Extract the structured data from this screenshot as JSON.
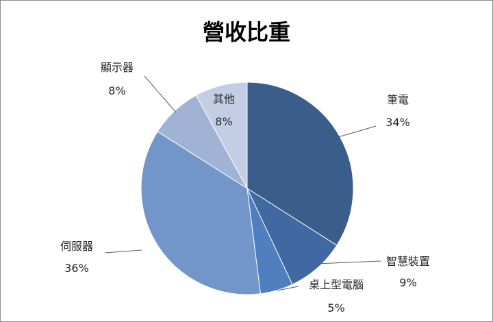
{
  "chart_data": {
    "type": "pie",
    "title": "營收比重",
    "start_angle_deg": 0,
    "direction": "clockwise",
    "slices": [
      {
        "label": "筆電",
        "percent_label": "34%",
        "value": 34,
        "color": "#3a5d8c"
      },
      {
        "label": "智慧裝置",
        "percent_label": "9%",
        "value": 9,
        "color": "#4168a0"
      },
      {
        "label": "桌上型電腦",
        "percent_label": "5%",
        "value": 5,
        "color": "#4f7fbf"
      },
      {
        "label": "伺服器",
        "percent_label": "36%",
        "value": 36,
        "color": "#7296c9"
      },
      {
        "label": "顯示器",
        "percent_label": "8%",
        "value": 8,
        "color": "#a0b3d5"
      },
      {
        "label": "其他",
        "percent_label": "8%",
        "value": 8,
        "color": "#c3cde3"
      }
    ],
    "legend": "none",
    "data_labels": "outside-with-leader-lines"
  }
}
